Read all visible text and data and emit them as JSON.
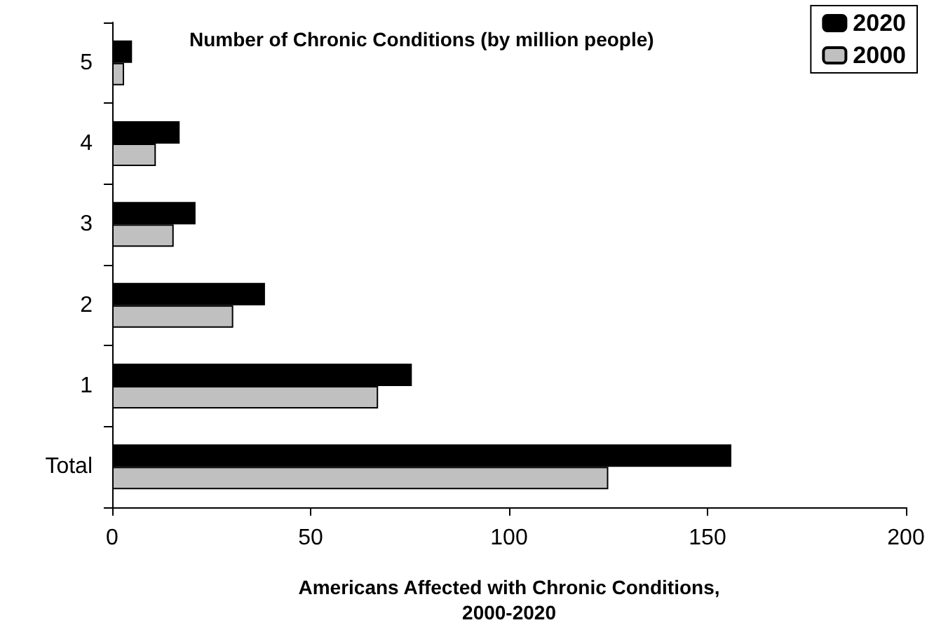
{
  "chart_data": {
    "type": "bar",
    "orientation": "horizontal",
    "title": "Number of Chronic Conditions (by million people)",
    "xlabel": "Americans Affected with Chronic Conditions,\n2000-2020",
    "categories": [
      "5",
      "4",
      "3",
      "2",
      "1",
      "Total"
    ],
    "series": [
      {
        "name": "2020",
        "color": "#000000",
        "values": [
          5,
          17,
          21,
          38.5,
          75.5,
          156
        ]
      },
      {
        "name": "2000",
        "color": "#c0c0c0",
        "values": [
          3,
          11,
          15.5,
          30.5,
          67,
          125
        ]
      }
    ],
    "xlim": [
      0,
      200
    ],
    "xticks": [
      0,
      50,
      100,
      150,
      200
    ],
    "grid": false,
    "legend": "top right"
  }
}
